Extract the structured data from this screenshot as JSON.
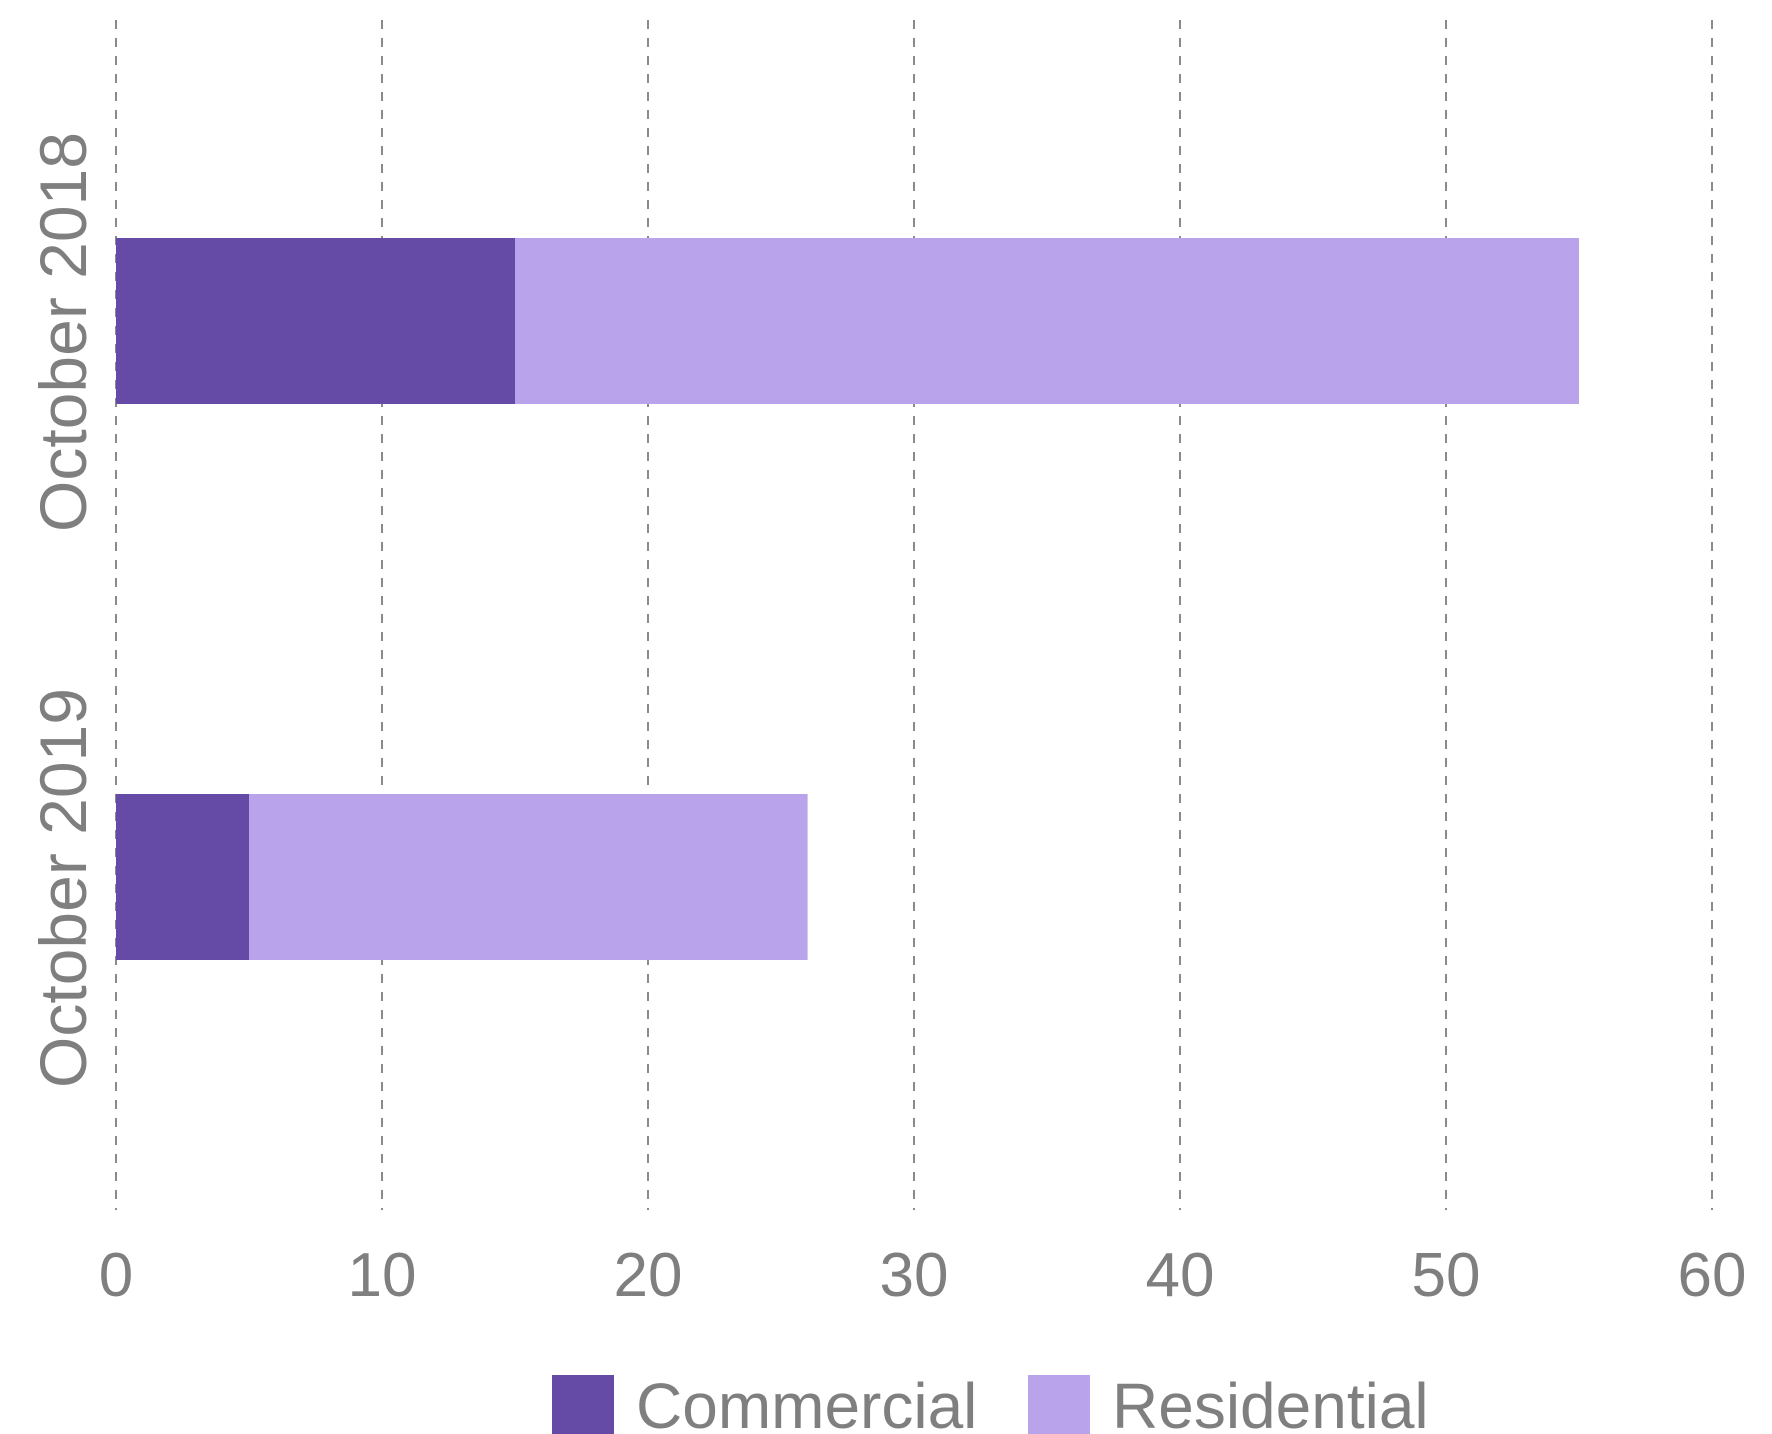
{
  "chart_data": {
    "type": "bar",
    "orientation": "horizontal",
    "stacked": true,
    "categories": [
      "October 2018",
      "October 2019"
    ],
    "series": [
      {
        "name": "Commercial",
        "values": [
          15,
          5
        ],
        "color": "#654ba6"
      },
      {
        "name": "Residential",
        "values": [
          40,
          21
        ],
        "color": "#b9a4ec"
      }
    ],
    "xlim": [
      0,
      60
    ],
    "xticks": [
      "0",
      "10",
      "20",
      "30",
      "40",
      "50",
      "60"
    ],
    "grid": true,
    "legend_position": "bottom",
    "title": "",
    "xlabel": "",
    "ylabel": ""
  }
}
